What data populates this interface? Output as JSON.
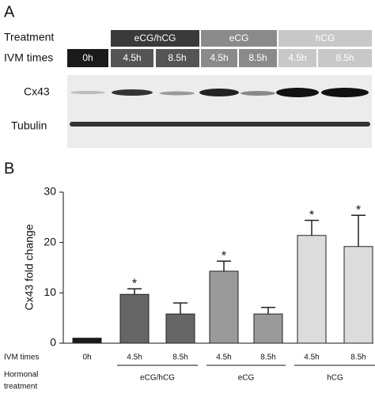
{
  "panel_a": {
    "label": "A",
    "treatment_label": "Treatment",
    "ivm_label": "IVM times",
    "groups": [
      "eCG/hCG",
      "eCG",
      "hCG"
    ],
    "times": [
      "0h",
      "4.5h",
      "8.5h",
      "4.5h",
      "8.5h",
      "4.5h",
      "8.5h"
    ],
    "bands": [
      "Cx43",
      "Tubulin"
    ]
  },
  "chart_data": {
    "type": "bar",
    "label": "B",
    "ylabel": "Cx43 fold change",
    "categories": [
      "0h",
      "4.5h",
      "8.5h",
      "4.5h",
      "8.5h",
      "4.5h",
      "8.5h"
    ],
    "values": [
      1,
      9.7,
      5.8,
      14.3,
      5.8,
      21.4,
      19.2
    ],
    "errors": [
      null,
      1.1,
      2.2,
      2.0,
      1.3,
      3.0,
      6.2
    ],
    "annotations": [
      null,
      "*",
      null,
      "*",
      null,
      "*",
      "*"
    ],
    "colors": [
      "#1a1a1a",
      "#666666",
      "#666666",
      "#9a9a9a",
      "#9a9a9a",
      "#dcdcdc",
      "#dcdcdc"
    ],
    "ylim": [
      0,
      30
    ],
    "yticks": [
      0,
      10,
      20,
      30
    ],
    "x_row_label": "IVM times",
    "group_row_label": [
      "Hormonal",
      "treatment"
    ],
    "groups": [
      "eCG/hCG",
      "eCG",
      "hCG"
    ]
  }
}
